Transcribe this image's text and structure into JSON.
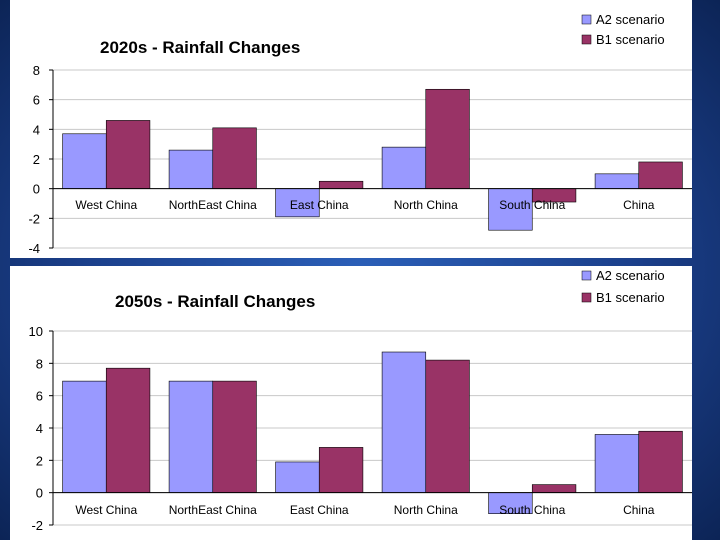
{
  "colors": {
    "series_a2": "#9999ff",
    "series_b1": "#993366",
    "background": "#1b3f8a",
    "panel": "#ffffff"
  },
  "chart_data": [
    {
      "type": "bar",
      "title": "2020s - Rainfall Changes",
      "categories": [
        "West China",
        "NorthEast China",
        "East China",
        "North China",
        "South China",
        "China"
      ],
      "series": [
        {
          "name": "A2 scenario",
          "values": [
            3.7,
            2.6,
            -1.9,
            2.8,
            -2.8,
            1.0
          ]
        },
        {
          "name": "B1 scenario",
          "values": [
            4.6,
            4.1,
            0.5,
            6.7,
            -0.9,
            1.8
          ]
        }
      ],
      "ylim": [
        -4,
        8
      ],
      "yticks": [
        8,
        6,
        4,
        2,
        0,
        -2,
        -4
      ],
      "xlabel": "",
      "ylabel": "",
      "grid": true,
      "legend": "top-right"
    },
    {
      "type": "bar",
      "title": "2050s - Rainfall Changes",
      "categories": [
        "West China",
        "NorthEast China",
        "East China",
        "North China",
        "South China",
        "China"
      ],
      "series": [
        {
          "name": "A2 scenario",
          "values": [
            6.9,
            6.9,
            1.9,
            8.7,
            -1.3,
            3.6
          ]
        },
        {
          "name": "B1 scenario",
          "values": [
            7.7,
            6.9,
            2.8,
            8.2,
            0.5,
            3.8
          ]
        }
      ],
      "ylim": [
        -2,
        10
      ],
      "yticks": [
        10,
        8,
        6,
        4,
        2,
        0,
        -2
      ],
      "xlabel": "",
      "ylabel": "",
      "grid": true,
      "legend": "top-right"
    }
  ]
}
